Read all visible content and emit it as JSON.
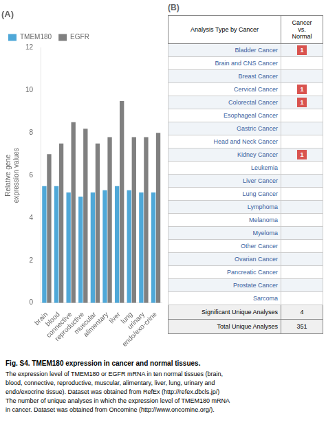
{
  "chart_data": [
    {
      "type": "bar",
      "title": "(A)",
      "categories": [
        "brain",
        "blood",
        "connective",
        "reproductive",
        "muscular",
        "alimentary",
        "liver",
        "lung",
        "urinary",
        "endo/exo-crine"
      ],
      "series": [
        {
          "name": "TMEM180",
          "color": "#4fa8d8",
          "values": [
            5.5,
            5.5,
            5.2,
            5.0,
            5.2,
            5.3,
            5.5,
            5.3,
            5.2,
            5.2
          ]
        },
        {
          "name": "EGFR",
          "color": "#808080",
          "values": [
            7.0,
            7.5,
            8.5,
            8.2,
            7.5,
            7.8,
            9.5,
            7.8,
            7.8,
            8.0
          ]
        }
      ],
      "ylabel": "Relative gene\nexpression values",
      "ylim": [
        0,
        12
      ],
      "yticks": [
        0,
        2,
        4,
        6,
        8,
        10,
        12
      ],
      "grid": false,
      "legend": "upper left"
    },
    {
      "type": "table",
      "title": "(B)",
      "columns": [
        "Analysis Type by Cancer",
        "Cancer\nvs.\nNormal"
      ],
      "categories": [
        "Bladder Cancer",
        "Brain and CNS Cancer",
        "Breast Cancer",
        "Cervical Cancer",
        "Colorectal Cancer",
        "Esophageal Cancer",
        "Gastric Cancer",
        "Head and Neck Cancer",
        "Kidney Cancer",
        "Leukemia",
        "Liver Cancer",
        "Lung Cancer",
        "Lymphoma",
        "Melanoma",
        "Myeloma",
        "Other Cancer",
        "Ovarian Cancer",
        "Pancreatic Cancer",
        "Prostate Cancer",
        "Sarcoma"
      ],
      "values": [
        1,
        0,
        0,
        1,
        1,
        0,
        0,
        0,
        1,
        0,
        0,
        0,
        0,
        0,
        0,
        0,
        0,
        0,
        0,
        0
      ],
      "color": "#d9534f",
      "footer": [
        {
          "label": "Significant Unique Analyses",
          "value": 4
        },
        {
          "label": "Total Unique Analyses",
          "value": 351
        }
      ]
    }
  ],
  "caption": {
    "title": "Fig. S4. TMEM180 expression in cancer and normal tissues.",
    "lines": [
      "The expression level of TMEM180 or EGFR mRNA in ten normal tissues (brain,",
      "blood, connective, reproductive, muscular, alimentary, liver, lung, urinary and",
      "endo/exocrine tissue). Dataset was obtained from RefEx (http://refex.dbcls.jp/)",
      "The number of unique analyses in which the expression level of TMEM180 mRNA",
      "in cancer. Dataset was obtained from Oncomine (http://www.oncomine.org/)."
    ]
  }
}
